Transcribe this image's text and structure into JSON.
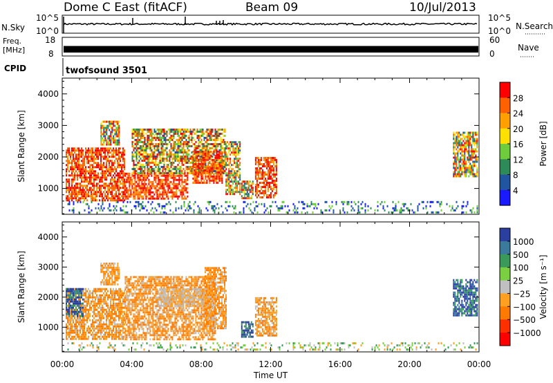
{
  "header": {
    "station": "Dome C East (fitACF)",
    "beam": "Beam 09",
    "date": "10/Jul/2013"
  },
  "strip": {
    "nsky_label": "N.Sky",
    "nsky_ticks": [
      "10^5",
      "10^0"
    ],
    "nsearch_label": "N.Search",
    "nsearch_ticks": [
      "10^5",
      "10^0"
    ],
    "freq_label_top": "Freq.",
    "freq_label_bottom": "[MHz]",
    "freq_ticks": [
      "18",
      "8"
    ],
    "nave_label": "Nave",
    "nave_ticks": [
      "60",
      "0"
    ],
    "cpid_label": "CPID",
    "cpid_value": "twofsound 3501"
  },
  "chart_data": [
    {
      "type": "heatmap",
      "name": "power-panel",
      "xlabel": "Time UT",
      "ylabel": "Slant Range [km]",
      "xlim": [
        0,
        24
      ],
      "ylim": [
        180,
        4500
      ],
      "yticks": [
        "1000",
        "2000",
        "3000",
        "4000"
      ],
      "colorbar": {
        "label": "Power [dB]",
        "ticks": [
          "28",
          "24",
          "20",
          "16",
          "12",
          "8",
          "4"
        ],
        "colors": [
          "#ff0000",
          "#ff6000",
          "#ffa000",
          "#ffe000",
          "#6fcc3c",
          "#2e8b57",
          "#2255a0",
          "#1a1aff"
        ],
        "range": [
          0,
          32
        ]
      },
      "echo_regions": [
        {
          "t0": 0.2,
          "t1": 3.6,
          "r0": 600,
          "r1": 2300,
          "level": "high"
        },
        {
          "t0": 2.2,
          "t1": 3.3,
          "r0": 2400,
          "r1": 3150,
          "level": "mid"
        },
        {
          "t0": 3.6,
          "t1": 7.2,
          "r0": 700,
          "r1": 1500,
          "level": "high"
        },
        {
          "t0": 4.0,
          "t1": 9.4,
          "r0": 1500,
          "r1": 2900,
          "level": "mid"
        },
        {
          "t0": 7.5,
          "t1": 9.2,
          "r0": 1200,
          "r1": 2200,
          "level": "high"
        },
        {
          "t0": 9.4,
          "t1": 10.2,
          "r0": 800,
          "r1": 2500,
          "level": "mid"
        },
        {
          "t0": 10.3,
          "t1": 11.0,
          "r0": 700,
          "r1": 1250,
          "level": "mid"
        },
        {
          "t0": 11.1,
          "t1": 12.3,
          "r0": 700,
          "r1": 2000,
          "level": "high"
        },
        {
          "t0": 22.5,
          "t1": 23.9,
          "r0": 1400,
          "r1": 2800,
          "level": "mid"
        },
        {
          "t0": 0.3,
          "t1": 23.9,
          "r0": 250,
          "r1": 600,
          "level": "low"
        }
      ]
    },
    {
      "type": "heatmap",
      "name": "velocity-panel",
      "xlabel": "Time UT",
      "ylabel": "Slant Range [km]",
      "xlim": [
        0,
        24
      ],
      "ylim": [
        180,
        4500
      ],
      "xticks": [
        "00:00",
        "04:00",
        "08:00",
        "12:00",
        "16:00",
        "20:00",
        "00:00"
      ],
      "yticks": [
        "1000",
        "2000",
        "3000",
        "4000"
      ],
      "colorbar": {
        "label": "Velocity [m s⁻¹]",
        "ticks": [
          "1000",
          "500",
          "100",
          "25",
          "−25",
          "−100",
          "−500",
          "−1000"
        ],
        "colors": [
          "#2a3f9f",
          "#3b7a9a",
          "#3a9a5a",
          "#7ad040",
          "#c0c0c0",
          "#ffa020",
          "#ff7a00",
          "#ff3000",
          "#ff0000"
        ],
        "range": [
          -1200,
          1200
        ]
      },
      "echo_regions": [
        {
          "t0": 0.2,
          "t1": 3.6,
          "r0": 600,
          "r1": 2300,
          "level": "neg-mid"
        },
        {
          "t0": 0.2,
          "t1": 1.2,
          "r0": 1400,
          "r1": 2300,
          "level": "pos"
        },
        {
          "t0": 2.2,
          "t1": 3.3,
          "r0": 2400,
          "r1": 3150,
          "level": "neg-mid"
        },
        {
          "t0": 3.6,
          "t1": 8.8,
          "r0": 600,
          "r1": 2700,
          "level": "neg-mid"
        },
        {
          "t0": 5.5,
          "t1": 8.5,
          "r0": 1700,
          "r1": 2300,
          "level": "grey"
        },
        {
          "t0": 8.2,
          "t1": 9.4,
          "r0": 1000,
          "r1": 3000,
          "level": "neg-mid"
        },
        {
          "t0": 10.3,
          "t1": 11.0,
          "r0": 700,
          "r1": 1200,
          "level": "pos"
        },
        {
          "t0": 11.1,
          "t1": 12.3,
          "r0": 700,
          "r1": 2000,
          "level": "neg-mid"
        },
        {
          "t0": 22.5,
          "t1": 23.9,
          "r0": 1400,
          "r1": 2600,
          "level": "pos"
        },
        {
          "t0": 0.3,
          "t1": 23.9,
          "r0": 250,
          "r1": 500,
          "level": "low"
        }
      ]
    }
  ]
}
